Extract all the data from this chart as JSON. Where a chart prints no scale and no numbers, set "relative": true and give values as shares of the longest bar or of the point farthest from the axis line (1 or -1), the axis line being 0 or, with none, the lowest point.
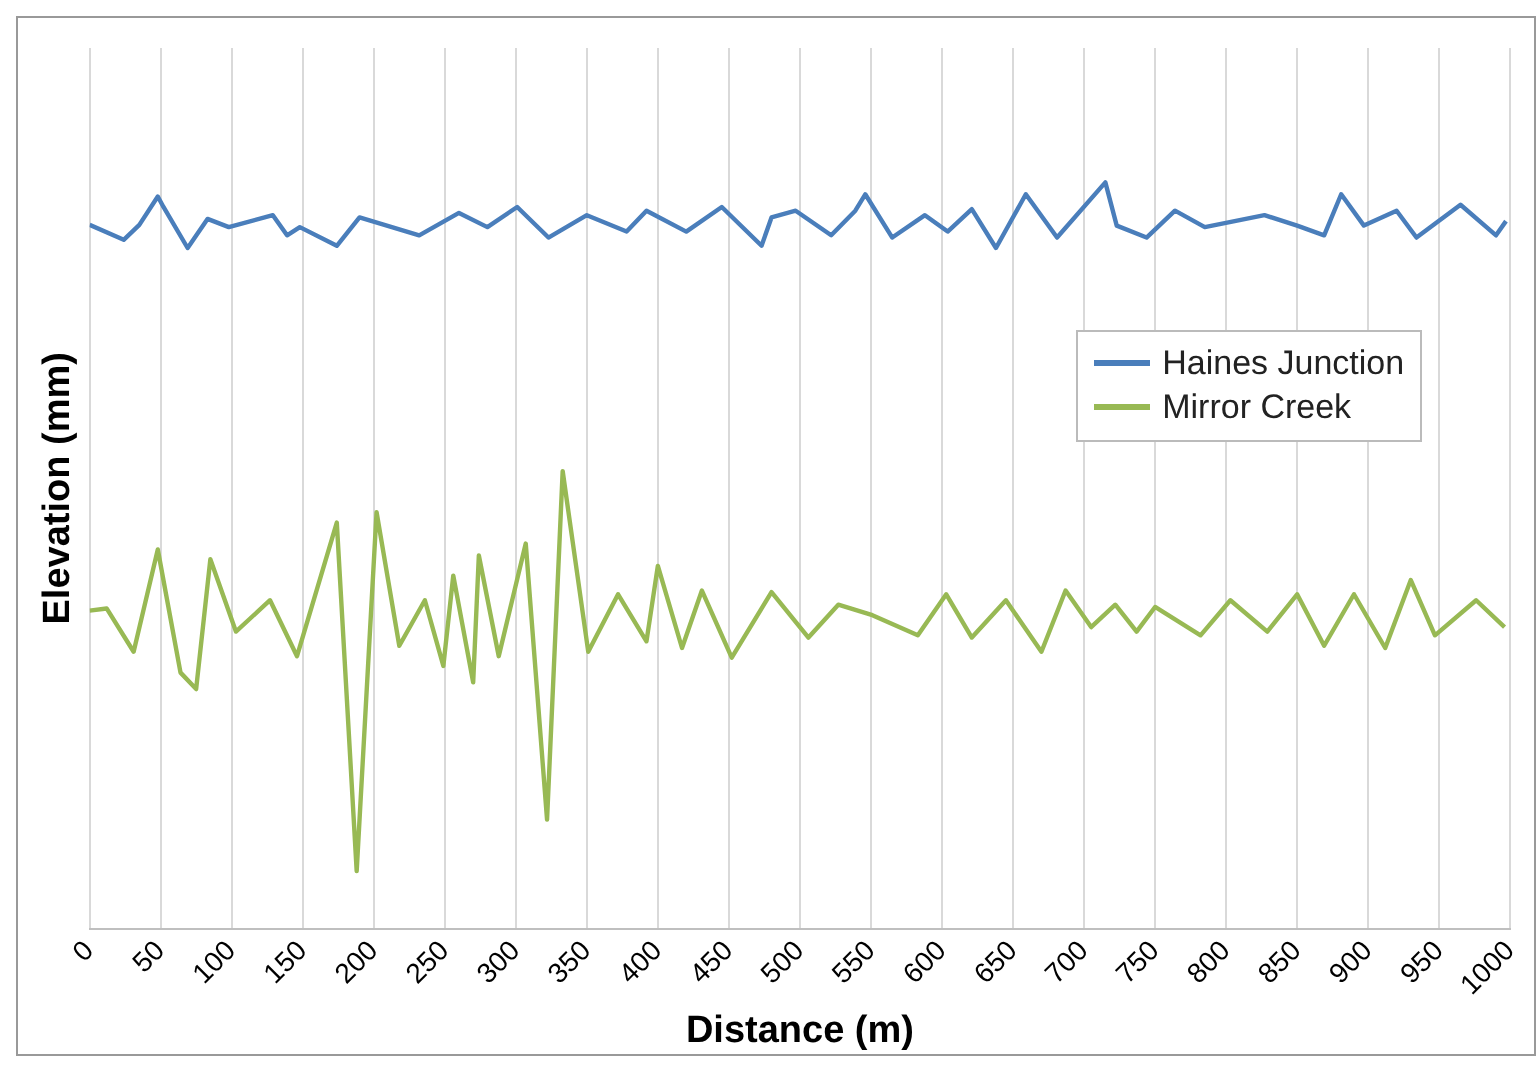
{
  "chart_data": {
    "type": "line",
    "xlabel": "Distance (m)",
    "ylabel": "Elevation (mm)",
    "relative": true,
    "xlim": [
      0,
      1000
    ],
    "xticks": [
      0,
      50,
      100,
      150,
      200,
      250,
      300,
      350,
      400,
      450,
      500,
      550,
      600,
      650,
      700,
      750,
      800,
      850,
      900,
      950,
      1000
    ],
    "grid": "x",
    "legend": "right",
    "tick_labels": "x",
    "marker": "none",
    "line_style": "solid",
    "series": [
      {
        "name": "Haines Junction",
        "color": "#4a7ebb",
        "x": [
          0,
          24,
          35,
          48,
          52,
          69,
          83,
          98,
          129,
          139,
          148,
          174,
          190,
          232,
          260,
          280,
          301,
          323,
          350,
          378,
          392,
          420,
          445,
          473,
          480,
          497,
          522,
          539,
          546,
          565,
          588,
          604,
          621,
          638,
          659,
          681,
          715,
          723,
          744,
          764,
          785,
          827,
          850,
          869,
          881,
          897,
          920,
          934,
          965,
          990,
          997
        ],
        "values": [
          0.943,
          0.923,
          0.943,
          0.981,
          0.967,
          0.912,
          0.951,
          0.94,
          0.956,
          0.929,
          0.94,
          0.915,
          0.953,
          0.929,
          0.959,
          0.94,
          0.967,
          0.926,
          0.956,
          0.934,
          0.962,
          0.934,
          0.967,
          0.915,
          0.953,
          0.962,
          0.929,
          0.962,
          0.984,
          0.926,
          0.956,
          0.934,
          0.964,
          0.912,
          0.984,
          0.926,
          1,
          0.942,
          0.926,
          0.962,
          0.94,
          0.956,
          0.942,
          0.929,
          0.984,
          0.942,
          0.962,
          0.926,
          0.97,
          0.929,
          0.948
        ]
      },
      {
        "name": "Mirror Creek",
        "color": "#98b954",
        "x": [
          0,
          12,
          31,
          48,
          64,
          75,
          85,
          103,
          127,
          146,
          174,
          188,
          202,
          218,
          236,
          249,
          256,
          270,
          274,
          288,
          307,
          322,
          333,
          351,
          372,
          392,
          400,
          417,
          431,
          452,
          480,
          506,
          527,
          551,
          583,
          603,
          621,
          645,
          670,
          687,
          705,
          722,
          737,
          750,
          782,
          803,
          829,
          850,
          869,
          890,
          912,
          930,
          947,
          976,
          996
        ],
        "values": [
          0.426,
          0.429,
          0.371,
          0.508,
          0.343,
          0.321,
          0.495,
          0.398,
          0.44,
          0.365,
          0.544,
          0.077,
          0.558,
          0.379,
          0.44,
          0.352,
          0.473,
          0.33,
          0.5,
          0.365,
          0.516,
          0.146,
          0.613,
          0.371,
          0.448,
          0.385,
          0.486,
          0.376,
          0.453,
          0.363,
          0.451,
          0.39,
          0.434,
          0.42,
          0.393,
          0.448,
          0.39,
          0.44,
          0.371,
          0.453,
          0.404,
          0.434,
          0.398,
          0.431,
          0.393,
          0.44,
          0.398,
          0.448,
          0.379,
          0.448,
          0.376,
          0.467,
          0.393,
          0.44,
          0.404
        ]
      }
    ]
  }
}
